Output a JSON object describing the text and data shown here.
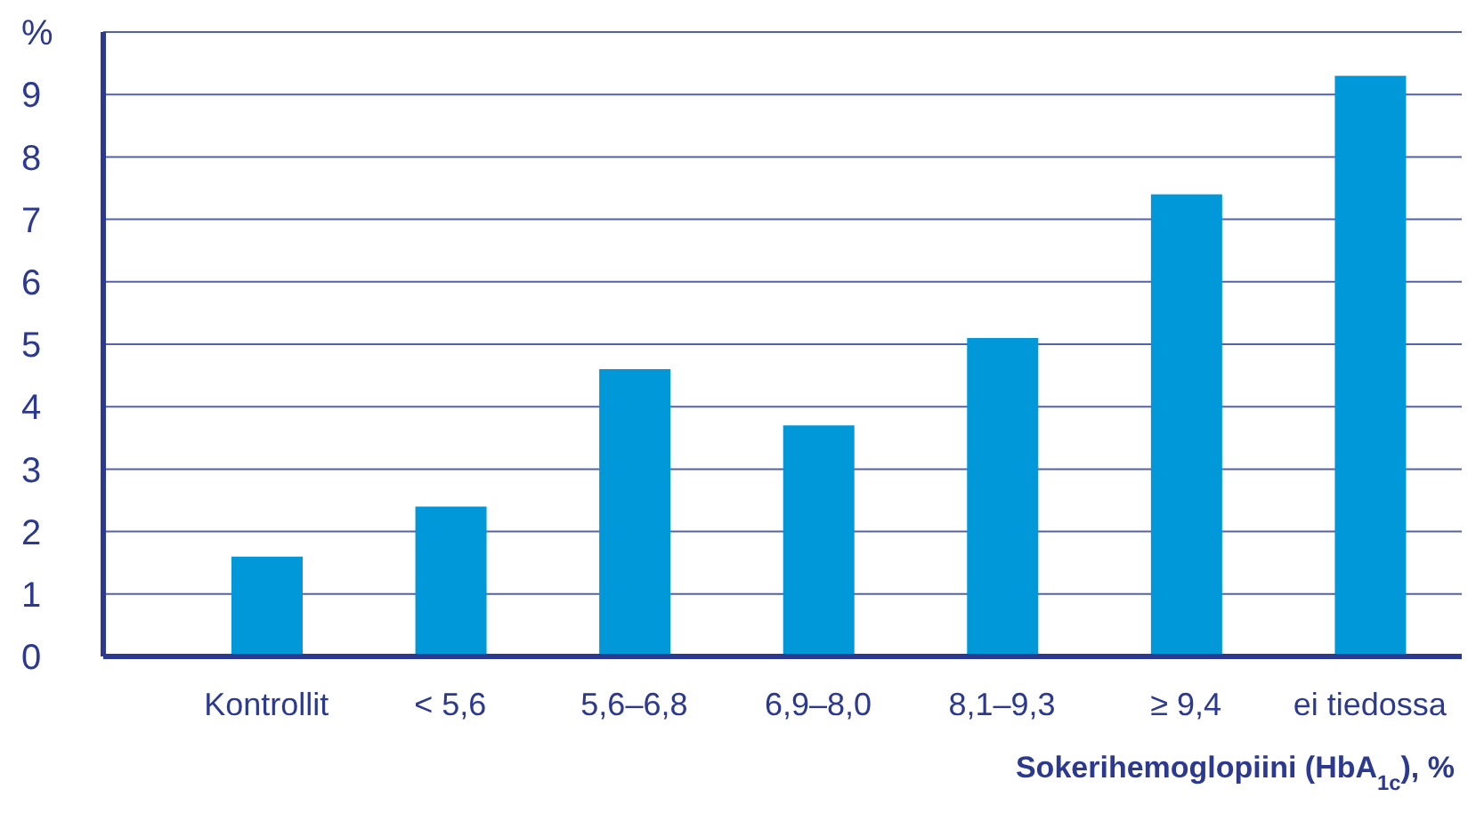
{
  "chart_data": {
    "type": "bar",
    "xlabel": "Sokerihemoglopiini (HbA$_{1c}$), %",
    "categories": [
      "Kontrollit",
      "< 5,6",
      "5,6–6,8",
      "6,9–8,0",
      "8,1–9,3",
      "≥ 9,4",
      "ei tiedossa"
    ],
    "values": [
      1.6,
      2.4,
      4.6,
      3.7,
      5.1,
      7.4,
      9.3
    ],
    "color": "#0098d8",
    "ylim": [
      0,
      10
    ],
    "yticks": [
      0,
      1,
      2,
      3,
      4,
      5,
      6,
      7,
      8,
      9,
      {
        "value": 10,
        "label": "%"
      }
    ],
    "grid": "y"
  }
}
